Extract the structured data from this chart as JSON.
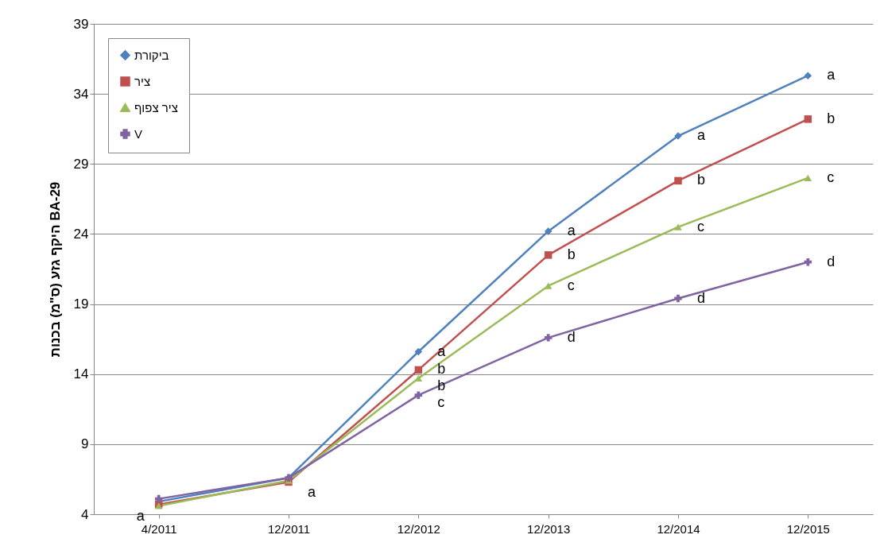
{
  "chart_data": {
    "type": "line",
    "ylabel": "היקף גזע (ס\"מ) בכנות BA-29",
    "categories": [
      "4/2011",
      "12/2011",
      "12/2012",
      "12/2013",
      "12/2014",
      "12/2015"
    ],
    "series": [
      {
        "name": "ביקורת",
        "color": "#4f81bd",
        "marker": "diamond",
        "values": [
          4.9,
          6.6,
          15.6,
          24.2,
          31.0,
          35.3
        ]
      },
      {
        "name": "ציר",
        "color": "#c0504d",
        "marker": "square",
        "values": [
          4.7,
          6.3,
          14.3,
          22.5,
          27.8,
          32.2
        ]
      },
      {
        "name": "ציר צפוף",
        "color": "#9bbb59",
        "marker": "triangle",
        "values": [
          4.6,
          6.4,
          13.7,
          20.3,
          24.5,
          28.0
        ]
      },
      {
        "name": "V",
        "color": "#8064a2",
        "marker": "cross",
        "values": [
          5.1,
          6.6,
          12.5,
          16.6,
          19.4,
          22.0
        ]
      }
    ],
    "ylim": [
      4,
      39
    ],
    "yticks": [
      4,
      9,
      14,
      19,
      24,
      29,
      34,
      39
    ],
    "grid": "y",
    "legend": "top left",
    "annotations": [
      {
        "text": "a",
        "x": "4/2011",
        "y": 4.6
      },
      {
        "text": "a",
        "x": "12/2011",
        "y": 6.3
      },
      {
        "text": "a",
        "x": "12/2012",
        "y": 15.6
      },
      {
        "text": "b",
        "x": "12/2012",
        "y": 14.3
      },
      {
        "text": "b",
        "x": "12/2012",
        "y": 13.7
      },
      {
        "text": "c",
        "x": "12/2012",
        "y": 12.5
      },
      {
        "text": "a",
        "x": "12/2013",
        "y": 24.2
      },
      {
        "text": "b",
        "x": "12/2013",
        "y": 22.5
      },
      {
        "text": "c",
        "x": "12/2013",
        "y": 20.3
      },
      {
        "text": "d",
        "x": "12/2013",
        "y": 16.6
      },
      {
        "text": "a",
        "x": "12/2014",
        "y": 31.0
      },
      {
        "text": "b",
        "x": "12/2014",
        "y": 27.8
      },
      {
        "text": "c",
        "x": "12/2014",
        "y": 24.5
      },
      {
        "text": "d",
        "x": "12/2014",
        "y": 19.4
      },
      {
        "text": "a",
        "x": "12/2015",
        "y": 35.3
      },
      {
        "text": "b",
        "x": "12/2015",
        "y": 32.2
      },
      {
        "text": "c",
        "x": "12/2015",
        "y": 28.0
      },
      {
        "text": "d",
        "x": "12/2015",
        "y": 22.0
      }
    ]
  }
}
